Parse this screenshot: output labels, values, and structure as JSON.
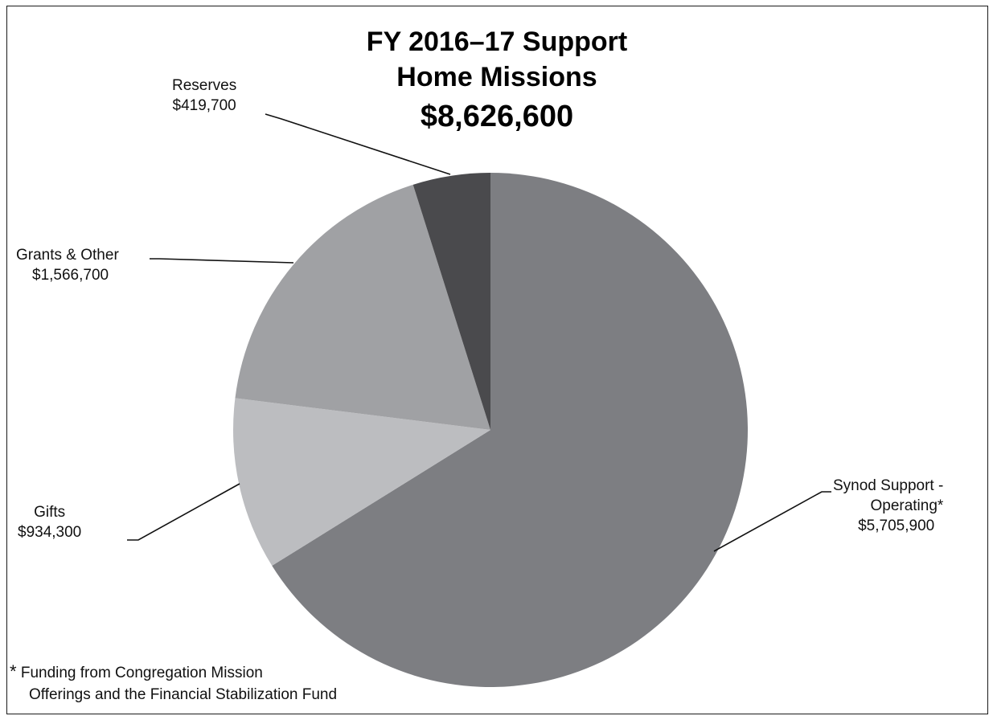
{
  "chart_data": {
    "type": "pie",
    "title_lines": [
      "FY 2016–17 Support",
      "Home Missions",
      "$8,626,600"
    ],
    "total": 8626600,
    "start_angle_deg": 0,
    "direction": "clockwise",
    "slices": [
      {
        "label_lines": [
          "Synod Support -",
          "Operating*"
        ],
        "value": 5705900,
        "value_label": "$5,705,900",
        "color": "#7d7e82"
      },
      {
        "label_lines": [
          "Gifts"
        ],
        "value": 934300,
        "value_label": "$934,300",
        "color": "#bcbdc0"
      },
      {
        "label_lines": [
          "Grants & Other"
        ],
        "value": 1566700,
        "value_label": "$1,566,700",
        "color": "#a0a1a4"
      },
      {
        "label_lines": [
          "Reserves"
        ],
        "value": 419700,
        "value_label": "$419,700",
        "color": "#4a4a4d"
      }
    ],
    "legend": "none"
  },
  "footnote": {
    "marker": "*",
    "line1": " Funding from Congregation Mission",
    "line2": "Offerings and the Financial Stabilization Fund"
  }
}
